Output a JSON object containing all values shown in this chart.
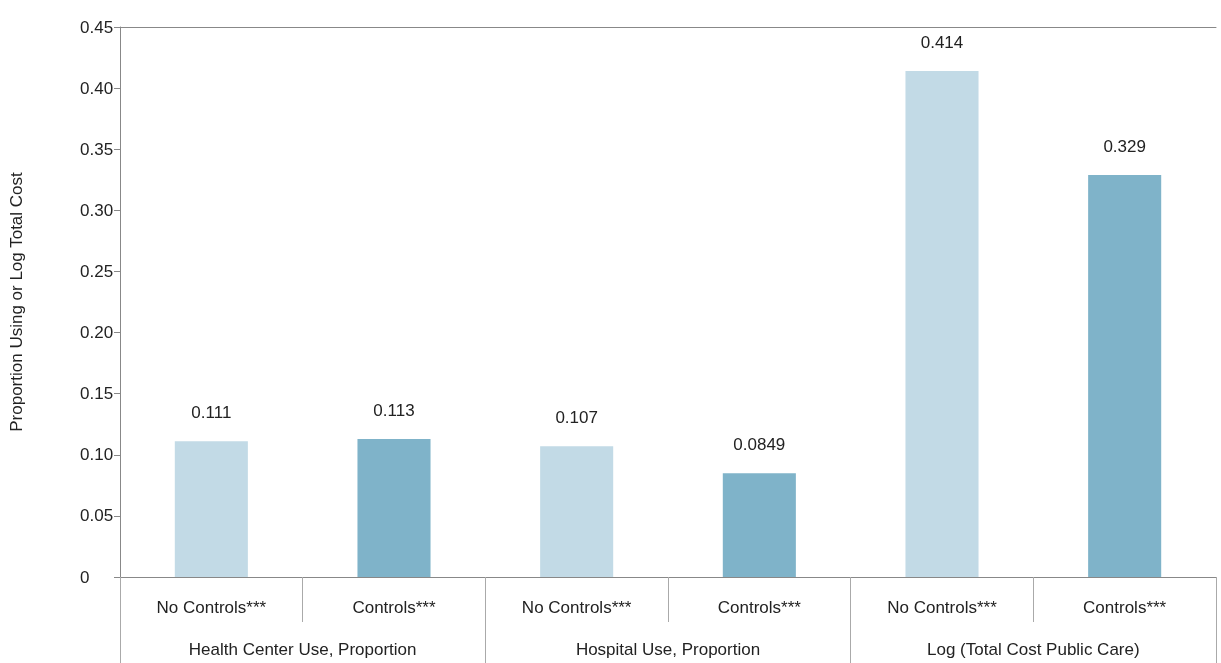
{
  "chart_data": {
    "type": "bar",
    "ylabel": "Proportion Using or Log Total Cost",
    "categories": [
      "No Controls***",
      "Controls***",
      "No Controls***",
      "Controls***",
      "No Controls***",
      "Controls***"
    ],
    "values": [
      0.111,
      0.113,
      0.107,
      0.0849,
      0.414,
      0.329
    ],
    "colors": [
      "#c2dae6",
      "#7fb3c9",
      "#c2dae6",
      "#7fb3c9",
      "#c2dae6",
      "#7fb3c9"
    ],
    "data_labels": true,
    "ylim": [
      0,
      0.45
    ],
    "yticks": [
      0,
      {
        "value": 0.05,
        "label": "0.05"
      },
      {
        "value": 0.1,
        "label": "0.10"
      },
      {
        "value": 0.15,
        "label": "0.15"
      },
      {
        "value": 0.2,
        "label": "0.20"
      },
      {
        "value": 0.25,
        "label": "0.25"
      },
      {
        "value": 0.3,
        "label": "0.30"
      },
      {
        "value": 0.35,
        "label": "0.35"
      },
      {
        "value": 0.4,
        "label": "0.40"
      },
      0.45
    ],
    "grid": false,
    "annotations": [
      "Health Center Use, Proportion",
      "Hospital Use, Proportion",
      "Log (Total Cost Public Care)"
    ]
  }
}
